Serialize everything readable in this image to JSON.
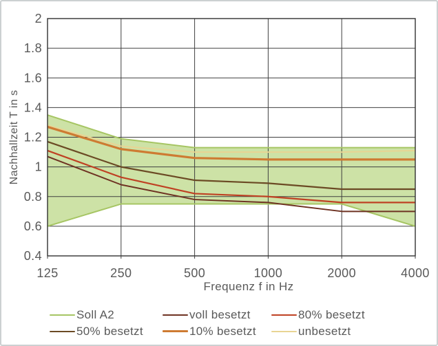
{
  "chart_data": {
    "type": "line",
    "title": "",
    "xlabel": "Frequenz f in Hz",
    "ylabel": "Nachhallzeit T in s",
    "xscale": "log2",
    "xlim": [
      125,
      4000
    ],
    "ylim": [
      0.4,
      2
    ],
    "grid": true,
    "grid_color": "#3f3f3f",
    "text_color": "#595959",
    "x_tick_values": [
      125,
      250,
      500,
      1000,
      2000,
      4000
    ],
    "x_tick_labels": [
      "125",
      "250",
      "500",
      "1000",
      "2000",
      "4000"
    ],
    "y_tick_values": [
      0.4,
      0.6,
      0.8,
      1,
      1.2,
      1.4,
      1.6,
      1.8,
      2
    ],
    "y_tick_labels": [
      "0.4",
      "0.6",
      "0.8",
      "1",
      "1.2",
      "1.4",
      "1.6",
      "1.8",
      "2"
    ],
    "frequencies_hz": [
      125,
      250,
      500,
      1000,
      2000,
      4000
    ],
    "band": {
      "name": "Soll A2",
      "upper": [
        1.35,
        1.19,
        1.13,
        1.13,
        1.13,
        1.13
      ],
      "lower": [
        0.6,
        0.75,
        0.75,
        0.75,
        0.75,
        0.6
      ],
      "fill_color": "#cde2a6",
      "edge_color": "#a6c563",
      "edge_width": 2
    },
    "series": [
      {
        "name": "voll besetzt",
        "color": "#6e3222",
        "width": 2,
        "values": [
          1.07,
          0.88,
          0.78,
          0.76,
          0.7,
          0.7
        ]
      },
      {
        "name": "80% besetzt",
        "color": "#bf4123",
        "width": 2.2,
        "values": [
          1.11,
          0.93,
          0.82,
          0.8,
          0.76,
          0.76
        ]
      },
      {
        "name": "50% besetzt",
        "color": "#6b4a24",
        "width": 2.2,
        "values": [
          1.17,
          1.0,
          0.91,
          0.89,
          0.85,
          0.85
        ]
      },
      {
        "name": "10% besetzt",
        "color": "#ce7b32",
        "width": 3.2,
        "values": [
          1.27,
          1.12,
          1.06,
          1.05,
          1.05,
          1.05
        ]
      },
      {
        "name": "unbesetzt",
        "color": "#e8d493",
        "width": 2,
        "values": [
          1.28,
          1.14,
          1.1,
          1.1,
          1.1,
          1.11
        ]
      }
    ],
    "legend": {
      "position": "bottom",
      "columns": 3,
      "items": [
        "Soll A2",
        "voll besetzt",
        "80% besetzt",
        "50% besetzt",
        "10% besetzt",
        "unbesetzt"
      ]
    }
  }
}
